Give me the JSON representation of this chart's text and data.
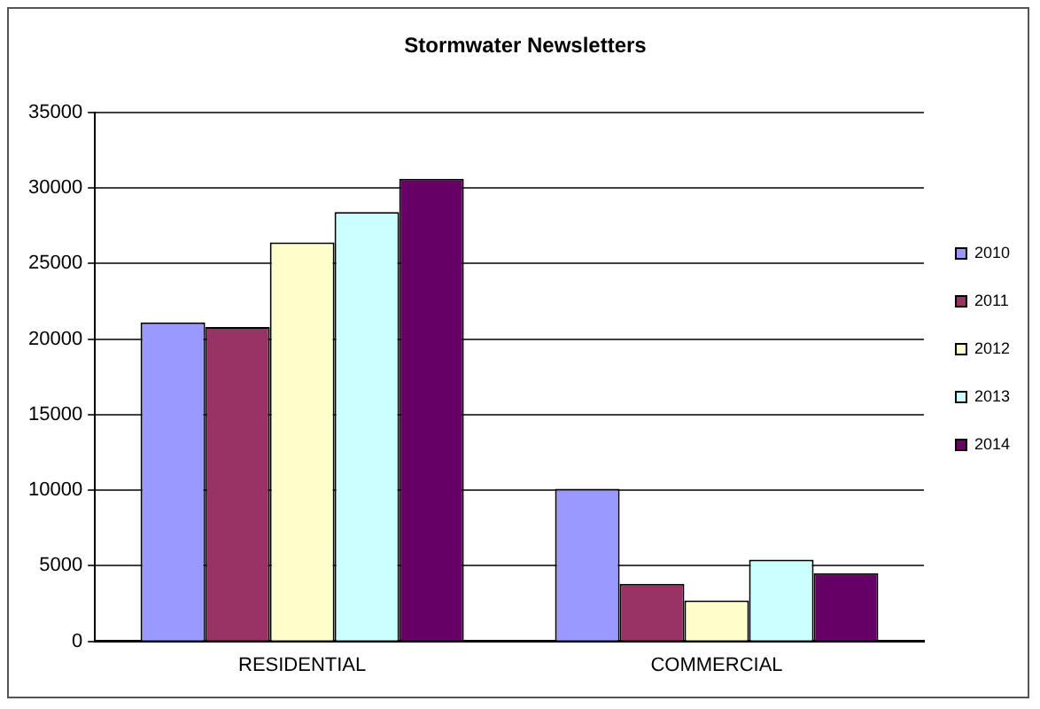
{
  "chart_data": {
    "type": "bar",
    "title": "Stormwater Newsletters",
    "categories": [
      "RESIDENTIAL",
      "COMMERCIAL"
    ],
    "series": [
      {
        "name": "2010",
        "color": "#9999ff",
        "values": [
          21100,
          10100
        ]
      },
      {
        "name": "2011",
        "color": "#993366",
        "values": [
          20800,
          3800
        ]
      },
      {
        "name": "2012",
        "color": "#ffffcc",
        "values": [
          26400,
          2700
        ]
      },
      {
        "name": "2013",
        "color": "#ccffff",
        "values": [
          28400,
          5400
        ]
      },
      {
        "name": "2014",
        "color": "#660066",
        "values": [
          30600,
          4500
        ]
      }
    ],
    "ylim": [
      0,
      35000
    ],
    "yticks": [
      0,
      5000,
      10000,
      15000,
      20000,
      25000,
      30000,
      35000
    ],
    "grid": "y",
    "legend": "right"
  }
}
